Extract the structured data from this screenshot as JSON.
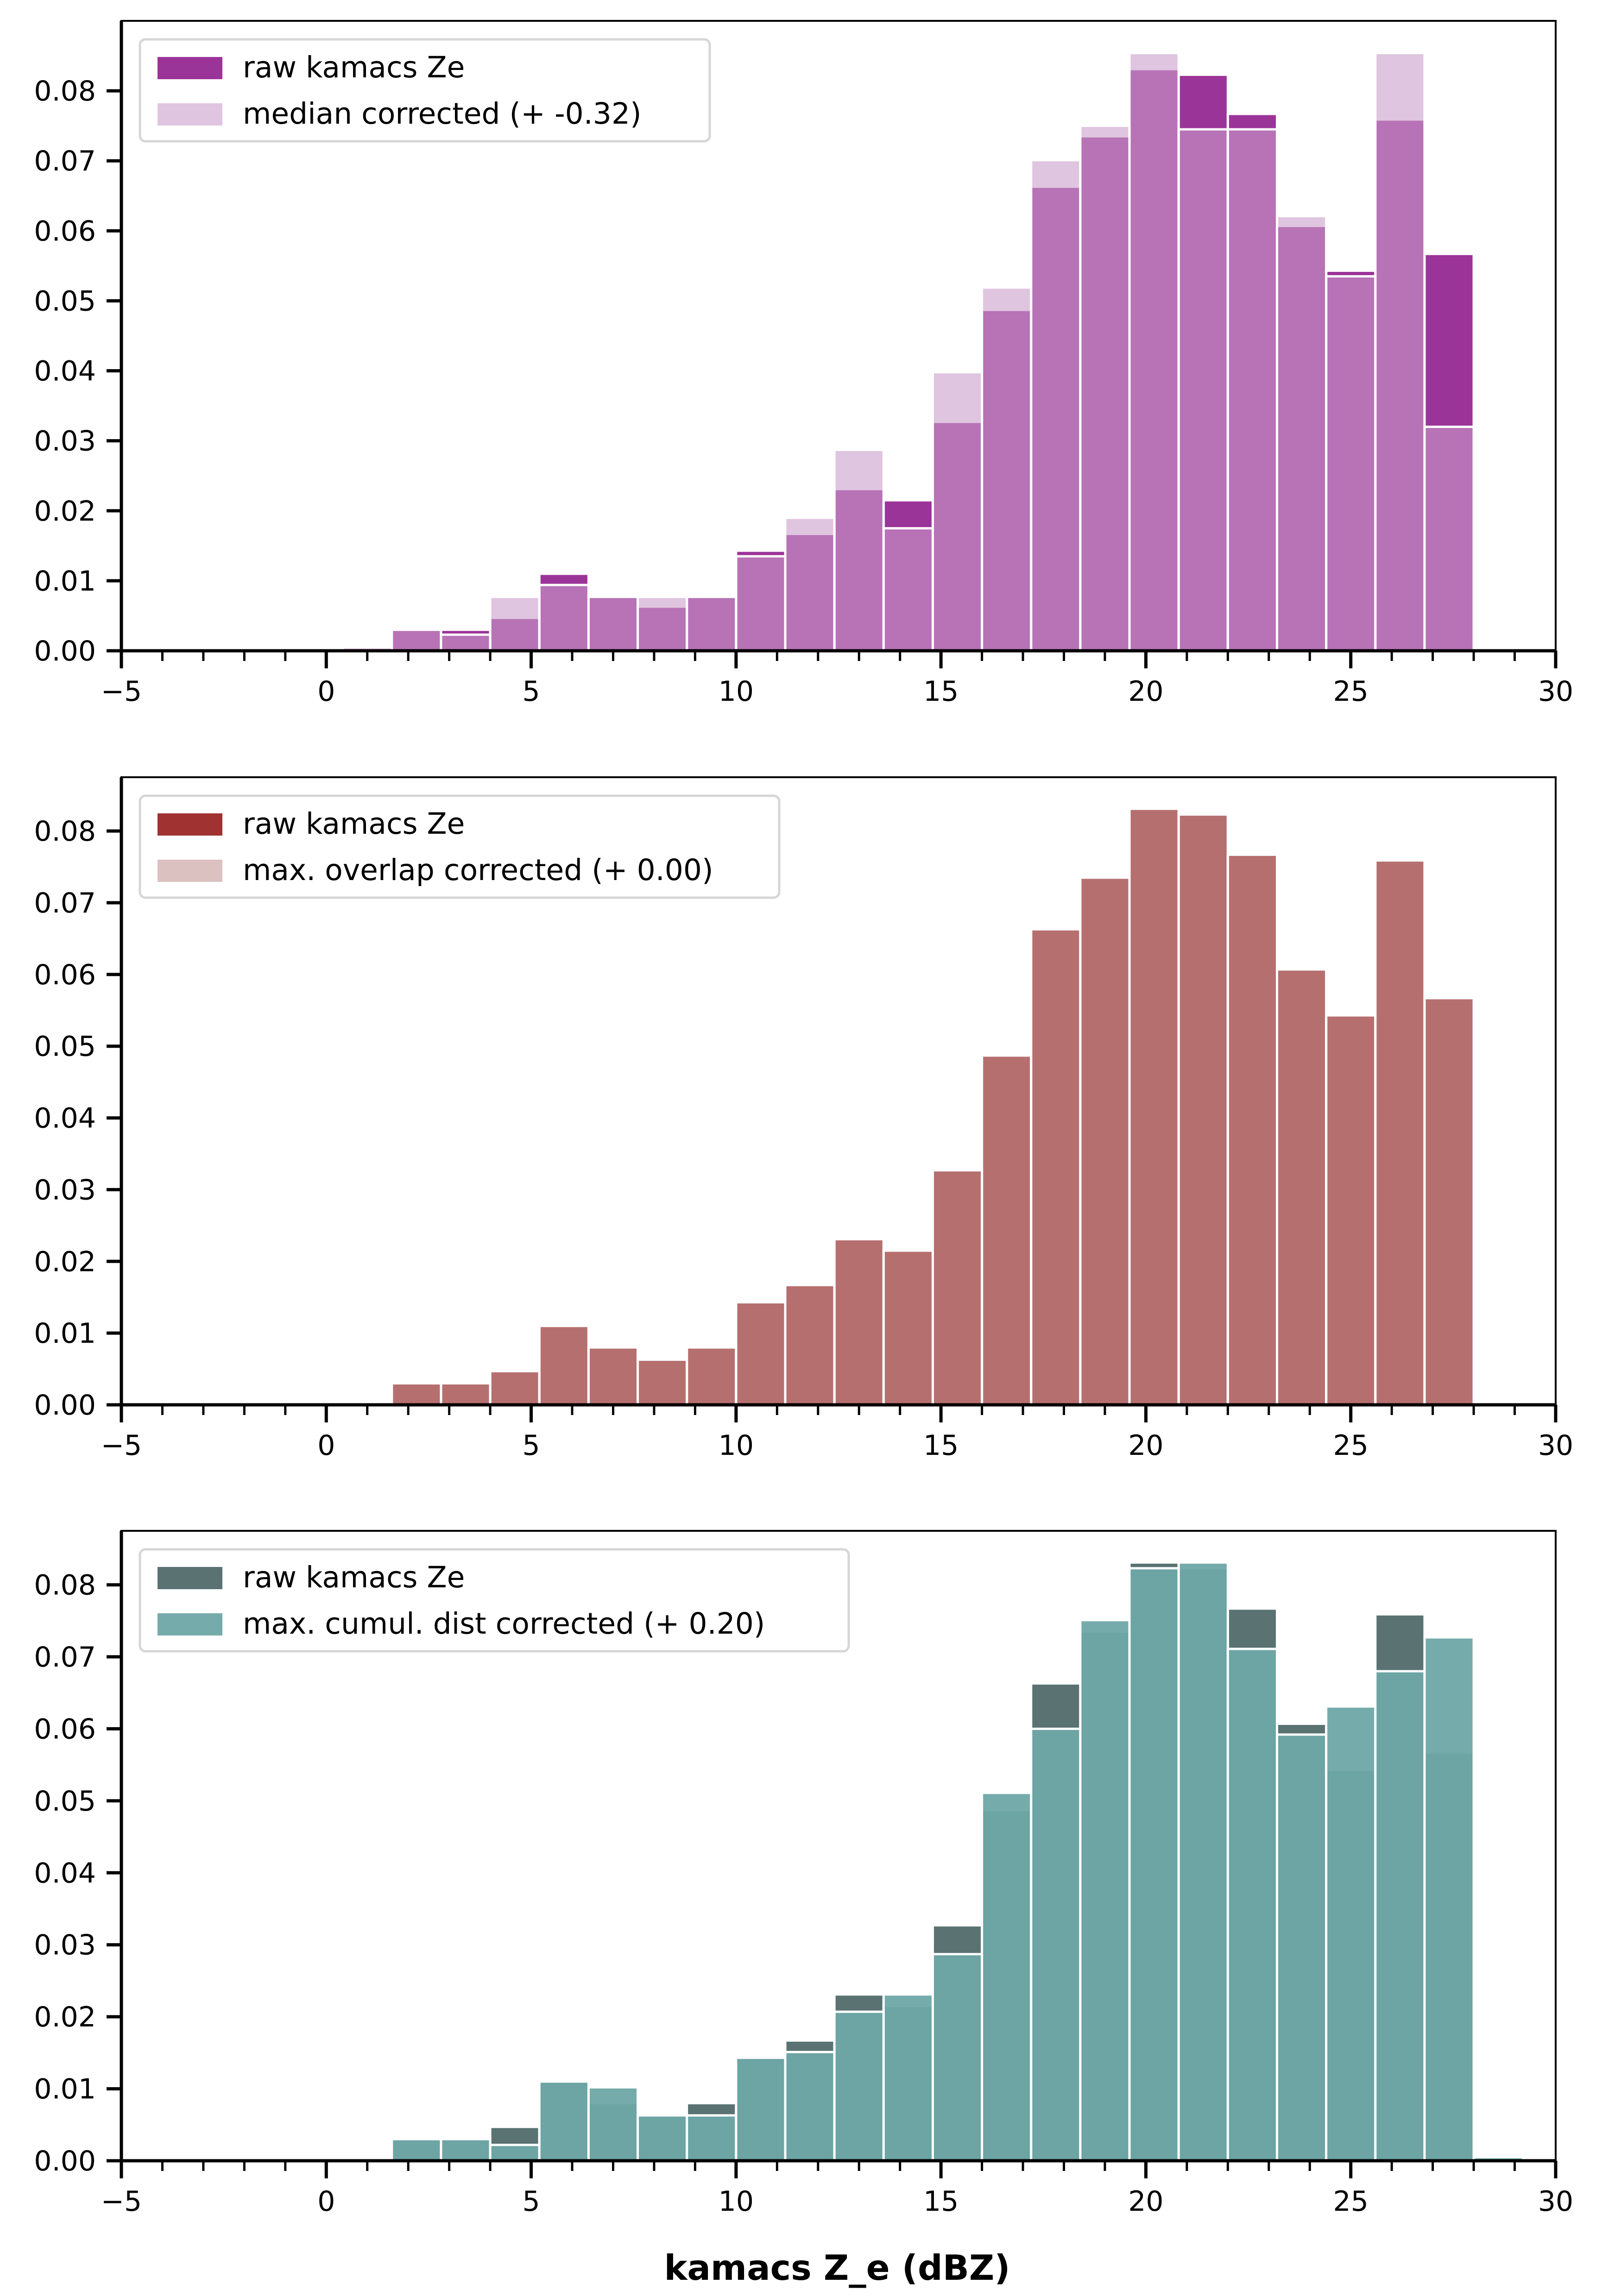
{
  "chart_data": [
    {
      "type": "bar",
      "panel": "top",
      "bin_edges": [
        0.4,
        1.6,
        2.8,
        4.0,
        5.2,
        6.4,
        7.6,
        8.8,
        10.0,
        11.2,
        12.4,
        13.6,
        14.8,
        16.0,
        17.2,
        18.4,
        19.6,
        20.8,
        22.0,
        23.2,
        24.4,
        25.6,
        26.8,
        28.0,
        29.2
      ],
      "xlim": [
        -5,
        30
      ],
      "ylim": [
        0,
        0.09
      ],
      "xticks": [
        "−5",
        "0",
        "5",
        "10",
        "15",
        "20",
        "25",
        "30"
      ],
      "yticks": [
        "0.00",
        "0.01",
        "0.02",
        "0.03",
        "0.04",
        "0.05",
        "0.06",
        "0.07",
        "0.08"
      ],
      "xlabel": "",
      "ylabel": "",
      "legend_position": "top-left",
      "series": [
        {
          "name": "raw kamacs Ze",
          "color": "#9b3498",
          "values": [
            0,
            0.003,
            0.003,
            0.0047,
            0.011,
            0.008,
            0.0063,
            0.008,
            0.0143,
            0.0167,
            0.0231,
            0.0215,
            0.0327,
            0.0487,
            0.0663,
            0.0735,
            0.0831,
            0.0823,
            0.0767,
            0.0607,
            0.0543,
            0.0759,
            0.0567,
            0
          ]
        },
        {
          "name": "median corrected (+ -0.32)",
          "color": "#c99fc9",
          "values": [
            0.0005,
            0.003,
            0.0023,
            0.0077,
            0.0094,
            0.0077,
            0.0077,
            0.0077,
            0.0135,
            0.019,
            0.0287,
            0.0175,
            0.0398,
            0.0519,
            0.0701,
            0.075,
            0.0854,
            0.0745,
            0.0745,
            0.0621,
            0.0535,
            0.0854,
            0.032,
            0
          ]
        }
      ]
    },
    {
      "type": "bar",
      "panel": "middle",
      "bin_edges": [
        0.4,
        1.6,
        2.8,
        4.0,
        5.2,
        6.4,
        7.6,
        8.8,
        10.0,
        11.2,
        12.4,
        13.6,
        14.8,
        16.0,
        17.2,
        18.4,
        19.6,
        20.8,
        22.0,
        23.2,
        24.4,
        25.6,
        26.8,
        28.0,
        29.2
      ],
      "xlim": [
        -5,
        30
      ],
      "ylim": [
        0,
        0.0875
      ],
      "xticks": [
        "−5",
        "0",
        "5",
        "10",
        "15",
        "20",
        "25",
        "30"
      ],
      "yticks": [
        "0.00",
        "0.01",
        "0.02",
        "0.03",
        "0.04",
        "0.05",
        "0.06",
        "0.07",
        "0.08"
      ],
      "xlabel": "",
      "ylabel": "",
      "legend_position": "top-left",
      "series": [
        {
          "name": "raw kamacs Ze",
          "color": "#a03232",
          "values": [
            0,
            0.003,
            0.003,
            0.0047,
            0.011,
            0.008,
            0.0063,
            0.008,
            0.0143,
            0.0167,
            0.0231,
            0.0215,
            0.0327,
            0.0487,
            0.0663,
            0.0735,
            0.0831,
            0.0823,
            0.0767,
            0.0607,
            0.0543,
            0.0759,
            0.0567,
            0
          ]
        },
        {
          "name": "max. overlap corrected (+ 0.00)",
          "color": "#c49898",
          "values": [
            0,
            0.003,
            0.003,
            0.0047,
            0.011,
            0.008,
            0.0063,
            0.008,
            0.0143,
            0.0167,
            0.0231,
            0.0215,
            0.0327,
            0.0487,
            0.0663,
            0.0735,
            0.0831,
            0.0823,
            0.0767,
            0.0607,
            0.0543,
            0.0759,
            0.0567,
            0
          ]
        }
      ]
    },
    {
      "type": "bar",
      "panel": "bottom",
      "bin_edges": [
        0.4,
        1.6,
        2.8,
        4.0,
        5.2,
        6.4,
        7.6,
        8.8,
        10.0,
        11.2,
        12.4,
        13.6,
        14.8,
        16.0,
        17.2,
        18.4,
        19.6,
        20.8,
        22.0,
        23.2,
        24.4,
        25.6,
        26.8,
        28.0,
        29.2
      ],
      "xlim": [
        -5,
        30
      ],
      "ylim": [
        0,
        0.0875
      ],
      "xticks": [
        "−5",
        "0",
        "5",
        "10",
        "15",
        "20",
        "25",
        "30"
      ],
      "yticks": [
        "0.00",
        "0.01",
        "0.02",
        "0.03",
        "0.04",
        "0.05",
        "0.06",
        "0.07",
        "0.08"
      ],
      "xlabel": "kamacs Z_e (dBZ)",
      "ylabel": "",
      "legend_position": "top-left",
      "series": [
        {
          "name": "raw kamacs Ze",
          "color": "#5a7272",
          "values": [
            0,
            0.003,
            0.003,
            0.0047,
            0.011,
            0.008,
            0.0063,
            0.008,
            0.0143,
            0.0167,
            0.0231,
            0.0215,
            0.0327,
            0.0487,
            0.0663,
            0.0735,
            0.0831,
            0.0823,
            0.0767,
            0.0607,
            0.0543,
            0.0759,
            0.0567,
            0
          ]
        },
        {
          "name": "max. cumul. dist corrected (+ 0.20)",
          "color": "#6fa7a7",
          "values": [
            0,
            0.003,
            0.003,
            0.0022,
            0.011,
            0.0102,
            0.0063,
            0.0063,
            0.0143,
            0.0151,
            0.0207,
            0.0231,
            0.0287,
            0.0511,
            0.06,
            0.0751,
            0.0823,
            0.0831,
            0.0711,
            0.0592,
            0.0631,
            0.068,
            0.0727,
            0.0005
          ]
        }
      ]
    }
  ]
}
